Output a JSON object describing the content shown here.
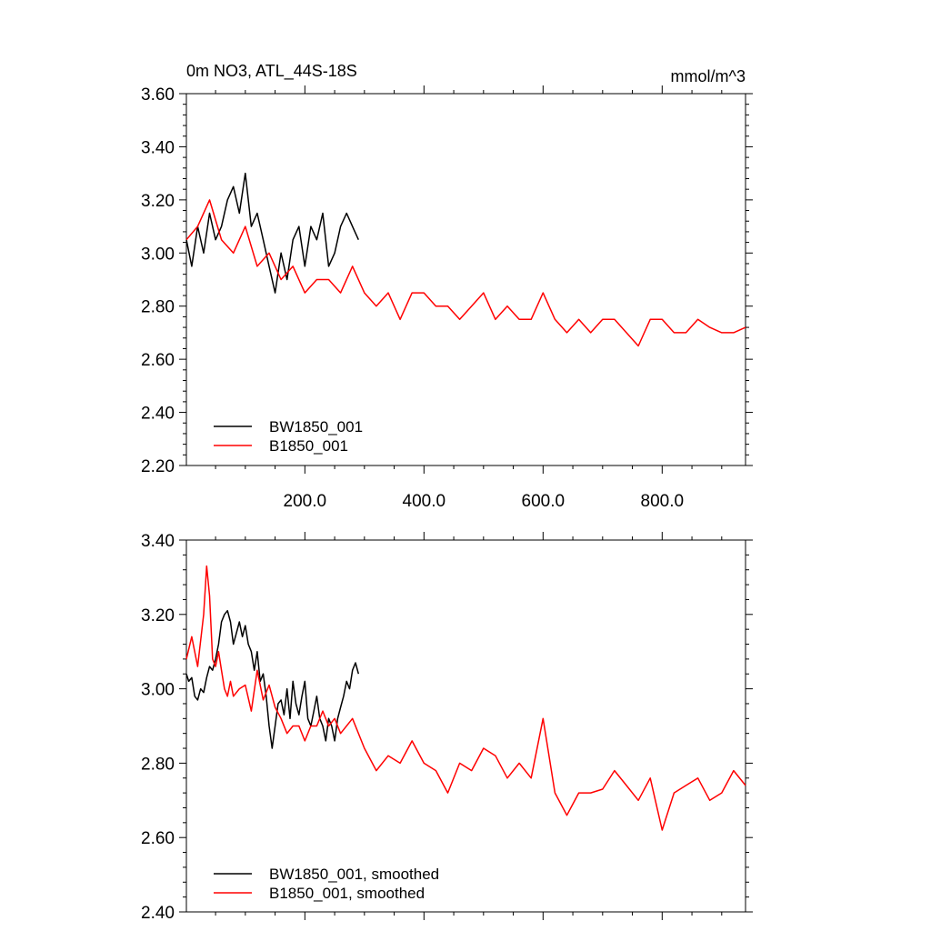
{
  "colors": {
    "BW1850_001": "#000000",
    "B1850_001": "#ff0000",
    "background": "#ffffff"
  },
  "chart_data": [
    {
      "type": "line",
      "title": "0m NO3, ATL_44S-18S",
      "units": "mmol/m^3",
      "xlim": [
        1,
        940
      ],
      "ylim": [
        2.2,
        3.6
      ],
      "xticks": [
        200,
        400,
        600,
        800
      ],
      "xtick_labels": [
        "200.0",
        "400.0",
        "600.0",
        "800.0"
      ],
      "yticks": [
        2.2,
        2.4,
        2.6,
        2.8,
        3.0,
        3.2,
        3.4,
        3.6
      ],
      "ytick_labels": [
        "2.20",
        "2.40",
        "2.60",
        "2.80",
        "3.00",
        "3.20",
        "3.40",
        "3.60"
      ],
      "grid": false,
      "legend_position": "bottom-left",
      "series": [
        {
          "name": "BW1850_001",
          "color": "#000000",
          "x": [
            1,
            10,
            20,
            30,
            40,
            50,
            60,
            70,
            80,
            90,
            100,
            110,
            120,
            130,
            140,
            150,
            160,
            170,
            180,
            190,
            200,
            210,
            220,
            230,
            240,
            250,
            260,
            270,
            280,
            290
          ],
          "y": [
            3.05,
            2.95,
            3.1,
            3.0,
            3.15,
            3.05,
            3.1,
            3.2,
            3.25,
            3.15,
            3.3,
            3.1,
            3.15,
            3.05,
            2.95,
            2.85,
            3.0,
            2.9,
            3.05,
            3.1,
            2.95,
            3.1,
            3.05,
            3.15,
            2.95,
            3.0,
            3.1,
            3.15,
            3.1,
            3.05
          ]
        },
        {
          "name": "B1850_001",
          "color": "#ff0000",
          "x": [
            1,
            20,
            40,
            60,
            80,
            100,
            120,
            140,
            160,
            180,
            200,
            220,
            240,
            260,
            280,
            300,
            320,
            340,
            360,
            380,
            400,
            420,
            440,
            460,
            480,
            500,
            520,
            540,
            560,
            580,
            600,
            620,
            640,
            660,
            680,
            700,
            720,
            740,
            760,
            780,
            800,
            820,
            840,
            860,
            880,
            900,
            920,
            940
          ],
          "y": [
            3.05,
            3.1,
            3.2,
            3.05,
            3.0,
            3.1,
            2.95,
            3.0,
            2.9,
            2.95,
            2.85,
            2.9,
            2.9,
            2.85,
            2.95,
            2.85,
            2.8,
            2.85,
            2.75,
            2.85,
            2.85,
            2.8,
            2.8,
            2.75,
            2.8,
            2.85,
            2.75,
            2.8,
            2.75,
            2.75,
            2.85,
            2.75,
            2.7,
            2.75,
            2.7,
            2.75,
            2.75,
            2.7,
            2.65,
            2.75,
            2.75,
            2.7,
            2.7,
            2.75,
            2.72,
            2.7,
            2.7,
            2.72
          ]
        }
      ]
    },
    {
      "type": "line",
      "title": "",
      "units": "",
      "xlim": [
        1,
        940
      ],
      "ylim": [
        2.4,
        3.4
      ],
      "xticks": [
        200,
        400,
        600,
        800
      ],
      "xtick_labels": [],
      "yticks": [
        2.4,
        2.6,
        2.8,
        3.0,
        3.2,
        3.4
      ],
      "ytick_labels": [
        "2.40",
        "2.60",
        "2.80",
        "3.00",
        "3.20",
        "3.40"
      ],
      "grid": false,
      "legend_position": "bottom-left",
      "series": [
        {
          "name": "BW1850_001, smoothed",
          "color": "#000000",
          "x": [
            1,
            5,
            10,
            15,
            20,
            25,
            30,
            35,
            40,
            45,
            50,
            55,
            60,
            65,
            70,
            75,
            80,
            85,
            90,
            95,
            100,
            105,
            110,
            115,
            120,
            125,
            130,
            135,
            140,
            145,
            150,
            155,
            160,
            165,
            170,
            175,
            180,
            185,
            190,
            195,
            200,
            205,
            210,
            215,
            220,
            225,
            230,
            235,
            240,
            245,
            250,
            255,
            260,
            265,
            270,
            275,
            280,
            285,
            290
          ],
          "y": [
            3.04,
            3.02,
            3.03,
            2.98,
            2.97,
            3.0,
            2.99,
            3.03,
            3.06,
            3.05,
            3.08,
            3.12,
            3.18,
            3.2,
            3.21,
            3.18,
            3.12,
            3.15,
            3.18,
            3.14,
            3.17,
            3.12,
            3.1,
            3.05,
            3.1,
            3.02,
            3.04,
            2.98,
            2.9,
            2.84,
            2.9,
            2.96,
            2.97,
            2.93,
            3.0,
            2.92,
            3.02,
            2.96,
            2.93,
            2.98,
            3.02,
            2.92,
            2.9,
            2.94,
            2.98,
            2.92,
            2.9,
            2.86,
            2.92,
            2.9,
            2.86,
            2.92,
            2.95,
            2.98,
            3.02,
            3.0,
            3.05,
            3.07,
            3.04
          ]
        },
        {
          "name": "B1850_001, smoothed",
          "color": "#ff0000",
          "x": [
            1,
            10,
            20,
            30,
            35,
            40,
            45,
            50,
            55,
            60,
            65,
            70,
            75,
            80,
            90,
            100,
            110,
            120,
            130,
            140,
            150,
            160,
            170,
            180,
            190,
            200,
            210,
            220,
            230,
            240,
            250,
            260,
            280,
            300,
            320,
            340,
            360,
            380,
            400,
            420,
            440,
            460,
            480,
            500,
            520,
            540,
            560,
            580,
            600,
            620,
            640,
            660,
            680,
            700,
            720,
            740,
            760,
            780,
            800,
            820,
            840,
            860,
            880,
            900,
            920,
            940
          ],
          "y": [
            3.08,
            3.14,
            3.06,
            3.2,
            3.33,
            3.25,
            3.08,
            3.06,
            3.1,
            3.05,
            3.0,
            2.98,
            3.02,
            2.98,
            3.0,
            3.01,
            2.94,
            3.05,
            2.97,
            3.01,
            2.95,
            2.92,
            2.88,
            2.9,
            2.9,
            2.86,
            2.9,
            2.9,
            2.94,
            2.9,
            2.92,
            2.88,
            2.92,
            2.84,
            2.78,
            2.82,
            2.8,
            2.86,
            2.8,
            2.78,
            2.72,
            2.8,
            2.78,
            2.84,
            2.82,
            2.76,
            2.8,
            2.76,
            2.92,
            2.72,
            2.66,
            2.72,
            2.72,
            2.73,
            2.78,
            2.74,
            2.7,
            2.76,
            2.62,
            2.72,
            2.74,
            2.76,
            2.7,
            2.72,
            2.78,
            2.74
          ]
        }
      ]
    }
  ]
}
